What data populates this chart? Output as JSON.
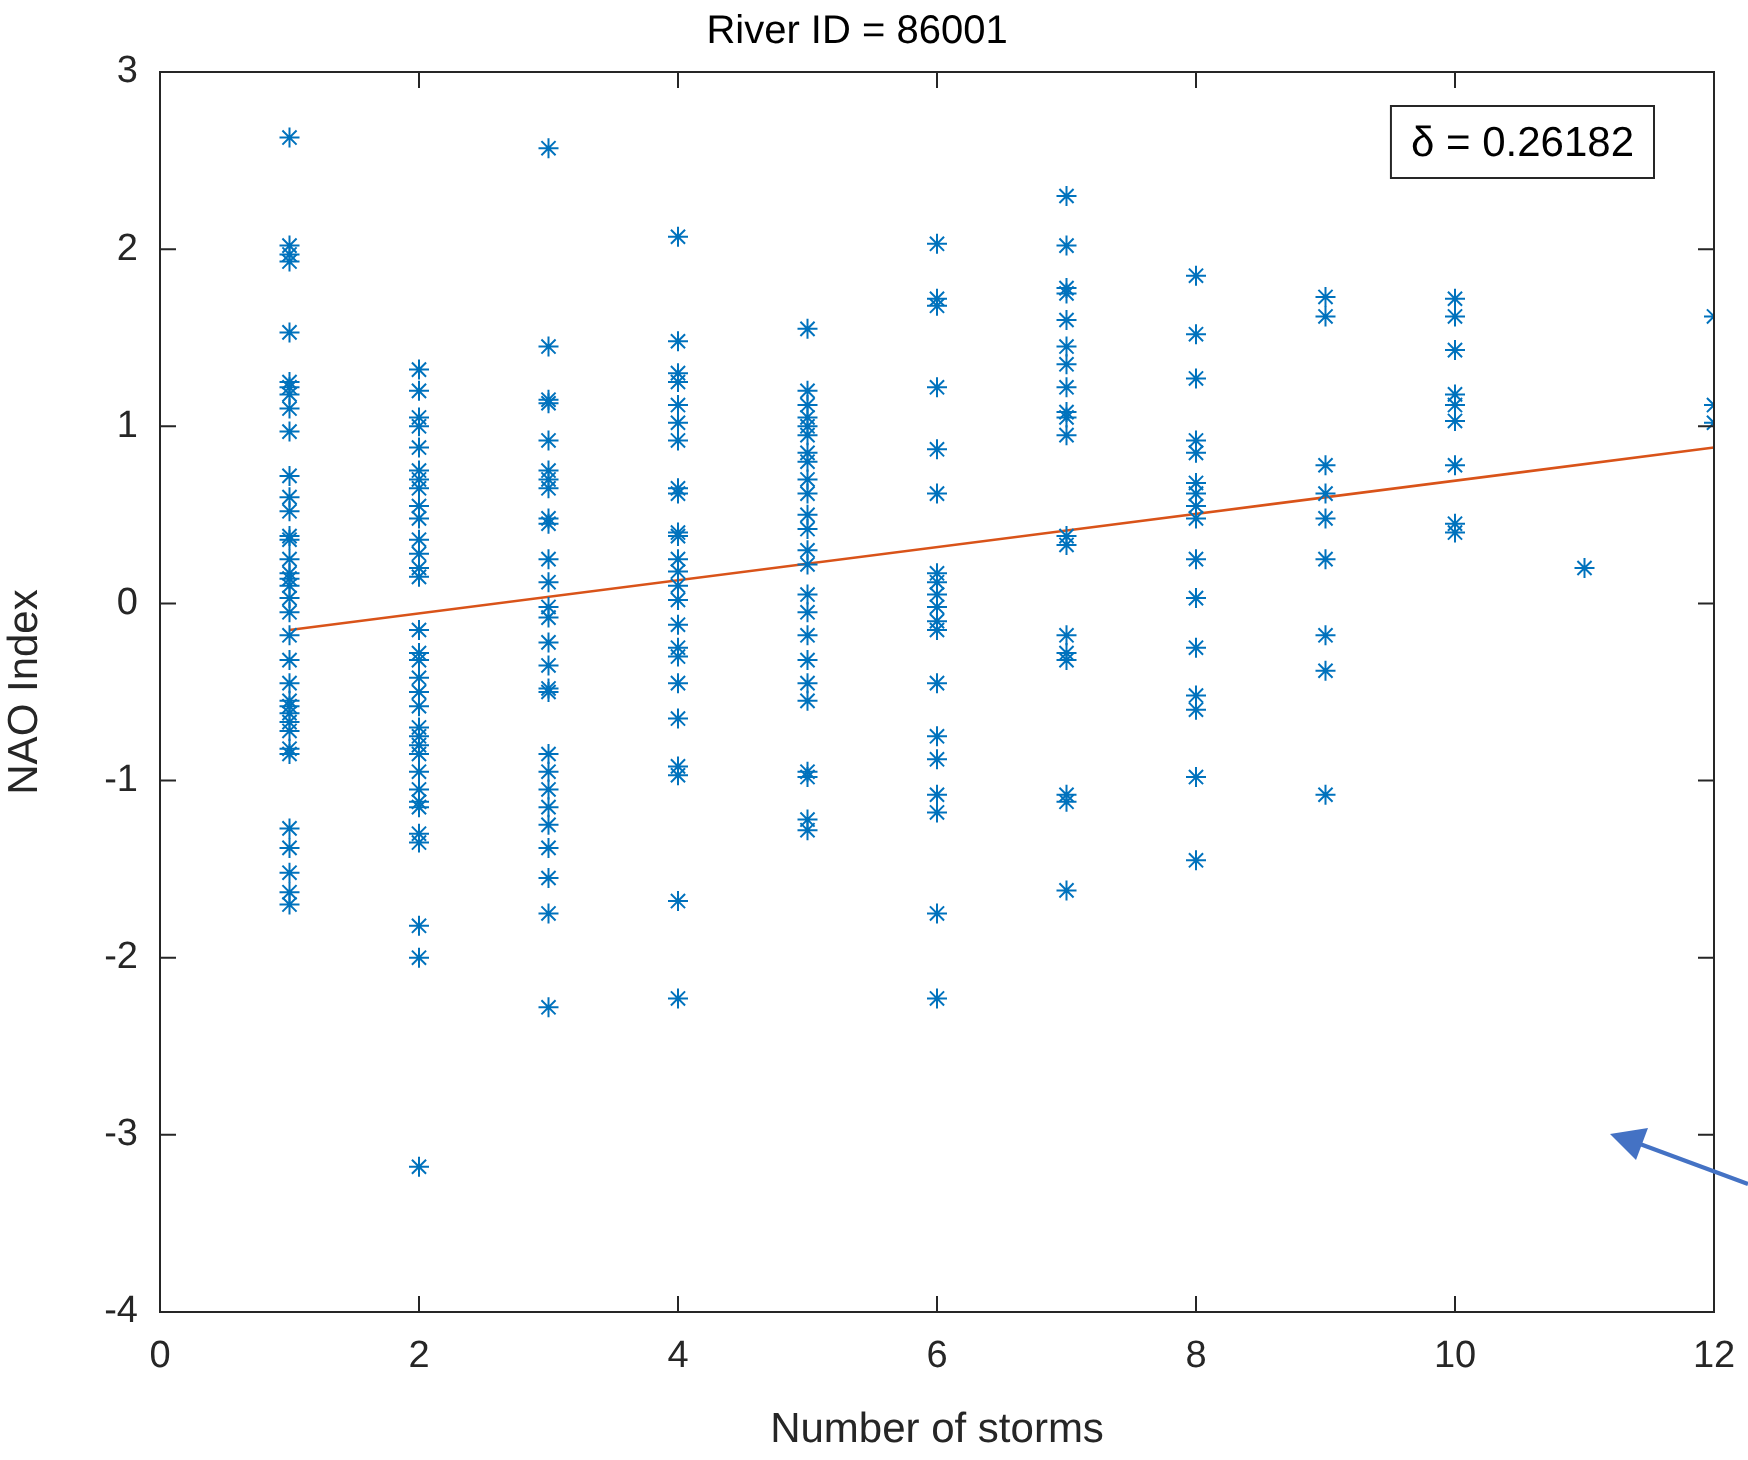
{
  "chart_data": {
    "type": "scatter",
    "title": "River ID = 86001",
    "xlabel": "Number of storms",
    "ylabel": "NAO Index",
    "xlim": [
      0,
      12
    ],
    "xticks": [
      0,
      2,
      4,
      6,
      8,
      10,
      12
    ],
    "ylim": [
      -4,
      3
    ],
    "yticks": [
      -4,
      -3,
      -2,
      -1,
      0,
      1,
      2,
      3
    ],
    "grid": false,
    "legend": false,
    "marker": "cross",
    "annotations": [
      "δ = 0.26182"
    ],
    "series": [
      {
        "color": "#0072bd",
        "x": [
          1,
          1,
          1,
          1,
          1,
          1,
          1,
          1,
          1,
          1,
          1,
          1,
          1,
          1,
          1,
          1,
          1,
          1,
          1,
          1,
          1,
          1,
          1,
          1,
          1,
          1,
          1,
          1,
          1,
          1,
          1,
          1,
          1,
          1,
          1,
          1,
          2,
          2,
          2,
          2,
          2,
          2,
          2,
          2,
          2,
          2,
          2,
          2,
          2,
          2,
          2,
          2,
          2,
          2,
          2,
          2,
          2,
          2,
          2,
          2,
          2,
          2,
          2,
          2,
          2,
          2,
          2,
          2,
          2,
          3,
          3,
          3,
          3,
          3,
          3,
          3,
          3,
          3,
          3,
          3,
          3,
          3,
          3,
          3,
          3,
          3,
          3,
          3,
          3,
          3,
          3,
          3,
          3,
          3,
          3,
          3,
          4,
          4,
          4,
          4,
          4,
          4,
          4,
          4,
          4,
          4,
          4,
          4,
          4,
          4,
          4,
          4,
          4,
          4,
          4,
          4,
          4,
          4,
          4,
          4,
          5,
          5,
          5,
          5,
          5,
          5,
          5,
          5,
          5,
          5,
          5,
          5,
          5,
          5,
          5,
          5,
          5,
          5,
          5,
          5,
          5,
          5,
          5,
          5,
          6,
          6,
          6,
          6,
          6,
          6,
          6,
          6,
          6,
          6,
          6,
          6,
          6,
          6,
          6,
          6,
          6,
          6,
          6,
          7,
          7,
          7,
          7,
          7,
          7,
          7,
          7,
          7,
          7,
          7,
          7,
          7,
          7,
          7,
          7,
          7,
          7,
          7,
          8,
          8,
          8,
          8,
          8,
          8,
          8,
          8,
          8,
          8,
          8,
          8,
          8,
          8,
          8,
          8,
          9,
          9,
          9,
          9,
          9,
          9,
          9,
          9,
          9,
          10,
          10,
          10,
          10,
          10,
          10,
          10,
          10,
          10,
          11,
          12,
          12,
          12
        ],
        "values": [
          2.63,
          2.02,
          1.97,
          1.93,
          1.53,
          1.25,
          1.22,
          1.18,
          1.1,
          0.97,
          0.72,
          0.6,
          0.52,
          0.38,
          0.36,
          0.25,
          0.17,
          0.14,
          0.1,
          0.03,
          -0.05,
          -0.18,
          -0.32,
          -0.45,
          -0.55,
          -0.58,
          -0.62,
          -0.67,
          -0.72,
          -0.82,
          -0.85,
          -1.27,
          -1.38,
          -1.52,
          -1.63,
          -1.7,
          1.32,
          1.2,
          1.05,
          1,
          0.88,
          0.75,
          0.7,
          0.65,
          0.55,
          0.48,
          0.36,
          0.28,
          0.2,
          0.15,
          -0.15,
          -0.28,
          -0.32,
          -0.42,
          -0.5,
          -0.58,
          -0.7,
          -0.75,
          -0.8,
          -0.85,
          -0.95,
          -1.05,
          -1.12,
          -1.15,
          -1.3,
          -1.35,
          -1.82,
          -2,
          -3.18,
          2.57,
          1.45,
          1.15,
          1.13,
          0.92,
          0.75,
          0.7,
          0.65,
          0.48,
          0.45,
          0.25,
          0.12,
          -0.02,
          -0.08,
          -0.22,
          -0.35,
          -0.48,
          -0.5,
          -0.85,
          -0.95,
          -1.05,
          -1.15,
          -1.25,
          -1.38,
          -1.55,
          -1.75,
          -2.28,
          2.07,
          1.48,
          1.3,
          1.25,
          1.12,
          1.02,
          0.92,
          0.65,
          0.62,
          0.4,
          0.38,
          0.25,
          0.18,
          0.1,
          0.02,
          -0.12,
          -0.25,
          -0.3,
          -0.45,
          -0.65,
          -0.92,
          -0.97,
          -1.68,
          -2.23,
          1.55,
          1.2,
          1.12,
          1.05,
          1,
          0.95,
          0.85,
          0.8,
          0.7,
          0.62,
          0.5,
          0.42,
          0.3,
          0.22,
          0.05,
          -0.05,
          -0.18,
          -0.32,
          -0.45,
          -0.55,
          -0.95,
          -0.98,
          -1.22,
          -1.28,
          2.03,
          1.72,
          1.68,
          1.22,
          0.87,
          0.62,
          0.17,
          0.12,
          0.05,
          -0.02,
          -0.1,
          -0.15,
          -0.45,
          -0.75,
          -0.88,
          -1.08,
          -1.18,
          -1.75,
          -2.23,
          2.3,
          2.02,
          1.78,
          1.75,
          1.6,
          1.45,
          1.35,
          1.22,
          1.08,
          1.05,
          0.95,
          0.38,
          0.33,
          -0.18,
          -0.28,
          -0.32,
          -1.08,
          -1.12,
          -1.62,
          1.85,
          1.52,
          1.27,
          0.92,
          0.85,
          0.68,
          0.62,
          0.55,
          0.48,
          0.25,
          0.03,
          -0.25,
          -0.52,
          -0.6,
          -0.98,
          -1.45,
          1.73,
          1.62,
          0.78,
          0.62,
          0.48,
          0.25,
          -0.18,
          -0.38,
          -1.08,
          1.72,
          1.62,
          1.43,
          1.18,
          1.12,
          1.03,
          0.78,
          0.45,
          0.4,
          0.2,
          1.62,
          1.12,
          1.02
        ]
      },
      {
        "type": "line",
        "color": "#d95319",
        "marker": "none",
        "x": [
          1,
          12
        ],
        "values": [
          -0.15,
          0.88
        ]
      }
    ]
  }
}
